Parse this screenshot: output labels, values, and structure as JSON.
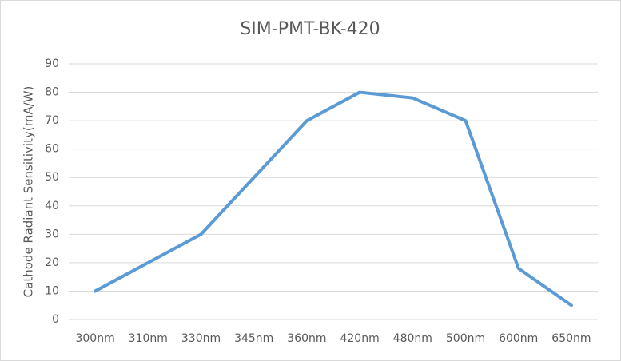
{
  "chart_data": {
    "type": "line",
    "title": "SIM-PMT-BK-420",
    "y_label": "Cathode Radiant Sensitivity(mA/W)",
    "categories": [
      "300nm",
      "310nm",
      "330nm",
      "345nm",
      "360nm",
      "420nm",
      "480nm",
      "500nm",
      "600nm",
      "650nm"
    ],
    "values": [
      10,
      20,
      30,
      50,
      70,
      80,
      78,
      70,
      18,
      5
    ],
    "color": "#5b9bd5",
    "ylim": [
      0,
      90
    ],
    "yticks": [
      0,
      10,
      20,
      30,
      40,
      50,
      60,
      70,
      80,
      90
    ],
    "grid": true
  }
}
